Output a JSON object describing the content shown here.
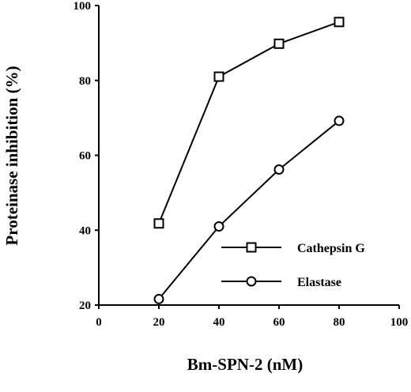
{
  "chart_data": {
    "type": "line",
    "xlabel": "Bm-SPN-2  (nM)",
    "ylabel": "Proteinase  inhibition  (%)",
    "xlim": [
      0,
      100
    ],
    "ylim": [
      20,
      100
    ],
    "x_ticks": [
      "0",
      "20",
      "40",
      "60",
      "80",
      "100"
    ],
    "y_ticks": [
      "20",
      "40",
      "60",
      "80",
      "100"
    ],
    "grid": false,
    "legend_position": "bottom-right",
    "series": [
      {
        "name": "Cathepsin  G",
        "marker": "square",
        "x": [
          20,
          40,
          60,
          80
        ],
        "y": [
          41.8,
          81.0,
          89.8,
          95.6
        ]
      },
      {
        "name": "Elastase",
        "marker": "circle",
        "x": [
          20,
          40,
          60,
          80
        ],
        "y": [
          21.6,
          41.0,
          56.2,
          69.2
        ]
      }
    ]
  }
}
